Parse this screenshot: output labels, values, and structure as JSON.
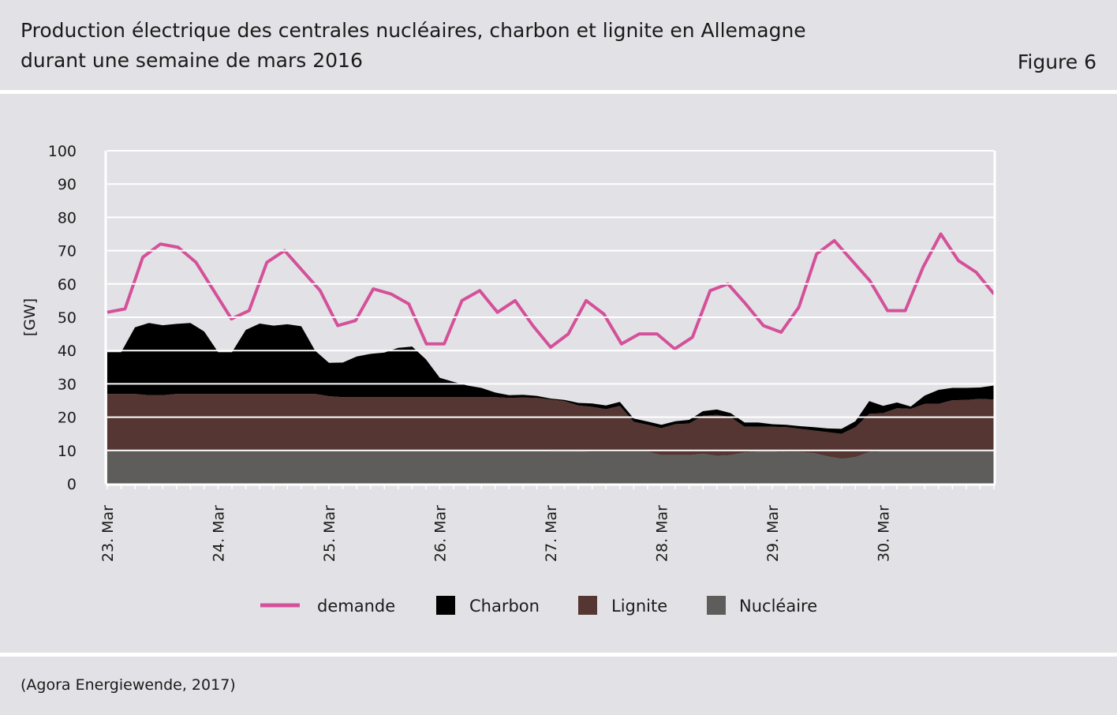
{
  "header": {
    "title_line1": "Production électrique des centrales nucléaires, charbon et lignite en Allemagne",
    "title_line2": "durant une semaine de mars 2016",
    "figure_label": "Figure 6"
  },
  "source": "(Agora Energiewende, 2017)",
  "colors": {
    "background": "#e2e2e6",
    "demande": "#d4519a",
    "charbon": "#000000",
    "lignite": "#553632",
    "nucleaire": "#5e5d5c",
    "grid": "#ffffff"
  },
  "chart_data": {
    "type": "area",
    "stacked": true,
    "ylabel": "[GW]",
    "ylim": [
      0,
      100
    ],
    "yticks": [
      0,
      10,
      20,
      30,
      40,
      50,
      60,
      70,
      80,
      90,
      100
    ],
    "xlim_days": [
      0,
      8
    ],
    "xtick_labels": [
      "23. Mar",
      "24. Mar",
      "25. Mar",
      "26. Mar",
      "27. Mar",
      "28. Mar",
      "29. Mar",
      "30. Mar"
    ],
    "grid": true,
    "legend_position": "bottom",
    "sample_step_days": 0.125,
    "series": [
      {
        "name": "Nucléaire",
        "kind": "area",
        "color_key": "nucleaire",
        "values": [
          10,
          10,
          10,
          10,
          10,
          10,
          10,
          10,
          10,
          10,
          10,
          10,
          10,
          10,
          10,
          10,
          10,
          10,
          10,
          10,
          10,
          10,
          10,
          10,
          10,
          10,
          10,
          10,
          10,
          10,
          10,
          10,
          9.7,
          9.7,
          9.7,
          9.6,
          9.6,
          9.6,
          9.6,
          9.6,
          8.6,
          8.6,
          8.6,
          9,
          8.4,
          8.6,
          9.4,
          9.7,
          9.7,
          9.5,
          9.5,
          9.2,
          8.2,
          7.5,
          8,
          9.5,
          9.7,
          9.7,
          9.7,
          9.7,
          9.7,
          9.7,
          9.7,
          9.7,
          9.7
        ]
      },
      {
        "name": "Lignite",
        "kind": "area",
        "color_key": "lignite",
        "values": [
          17,
          17,
          17,
          16.6,
          16.6,
          17,
          17,
          17,
          17,
          17,
          17,
          17,
          17,
          17,
          17,
          17,
          16.3,
          16,
          16,
          16,
          16,
          16,
          16,
          16,
          16,
          16,
          16,
          16,
          16,
          15.8,
          15.9,
          15.8,
          15.6,
          15.1,
          13.8,
          13.5,
          12.8,
          13.8,
          9,
          8.1,
          8.1,
          9.3,
          9.5,
          11.4,
          12.3,
          11.4,
          7.7,
          7.4,
          7.4,
          7.5,
          7,
          6.8,
          7.3,
          7.5,
          9,
          11.5,
          11.5,
          13,
          12.8,
          14.3,
          14.3,
          15.4,
          15.5,
          15.8,
          15.6
        ]
      },
      {
        "name": "Charbon",
        "kind": "area",
        "color_key": "charbon",
        "values": [
          12.5,
          12.5,
          20,
          21.7,
          21,
          21,
          21.3,
          18.7,
          12.5,
          12.5,
          19.2,
          21.1,
          20.5,
          20.9,
          20.3,
          13,
          10,
          10.4,
          12.2,
          13,
          13.4,
          14.8,
          15.2,
          11.4,
          5.8,
          4.6,
          3.5,
          2.8,
          1.4,
          0.8,
          0.8,
          0.6,
          0.3,
          0.4,
          0.8,
          1,
          1.1,
          1.2,
          1,
          1,
          1,
          0.9,
          1.1,
          1.4,
          1.6,
          1.2,
          1.3,
          1.3,
          0.8,
          0.7,
          0.8,
          1,
          1.1,
          1.5,
          1.8,
          3.8,
          2.2,
          1.7,
          0.7,
          2.5,
          4.2,
          3.7,
          3.6,
          3.4,
          4.2
        ]
      },
      {
        "name": "demande",
        "kind": "line",
        "color_key": "demande",
        "values": [
          51.5,
          52.5,
          68,
          72,
          71,
          66.5,
          58,
          49.5,
          52,
          66.5,
          70,
          64,
          58,
          47.5,
          49,
          58.5,
          57,
          54,
          42,
          42,
          55,
          58,
          51.5,
          55,
          47.5,
          41,
          45,
          55,
          51,
          42,
          45,
          45,
          40.5,
          44,
          58,
          60,
          54,
          47.5,
          45.5,
          53,
          69,
          73,
          67,
          61,
          52,
          52,
          65,
          75,
          67,
          63.5,
          57
        ]
      }
    ]
  },
  "legend": {
    "demande": "demande",
    "charbon": "Charbon",
    "lignite": "Lignite",
    "nucleaire": "Nucléaire"
  }
}
